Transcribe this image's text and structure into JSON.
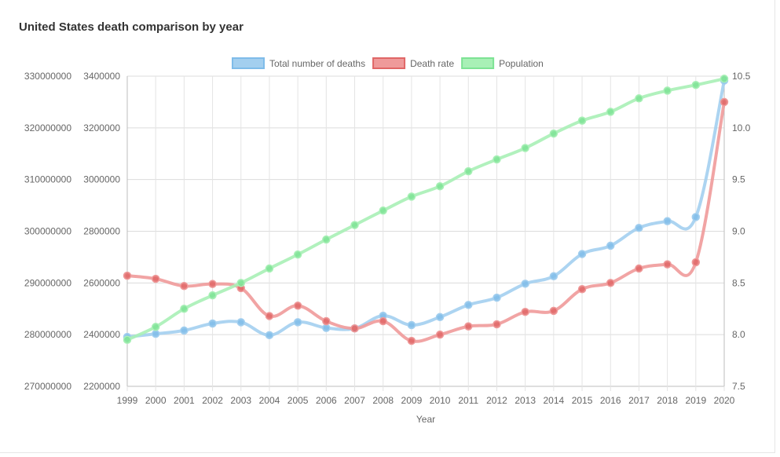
{
  "chart_data": {
    "type": "line",
    "title": "United States death comparison by year",
    "xlabel": "Year",
    "categories": [
      "1999",
      "2000",
      "2001",
      "2002",
      "2003",
      "2004",
      "2005",
      "2006",
      "2007",
      "2008",
      "2009",
      "2010",
      "2011",
      "2012",
      "2013",
      "2014",
      "2015",
      "2016",
      "2017",
      "2018",
      "2019",
      "2020"
    ],
    "axes": {
      "population": {
        "ticks": [
          "270000000",
          "280000000",
          "290000000",
          "300000000",
          "310000000",
          "320000000",
          "330000000"
        ],
        "ylim": [
          270000000,
          330000000
        ]
      },
      "deaths": {
        "ticks": [
          "2200000",
          "2400000",
          "2600000",
          "2800000",
          "3000000",
          "3200000",
          "3400000"
        ],
        "ylim": [
          2200000,
          3400000
        ]
      },
      "rate": {
        "ticks": [
          "7.5",
          "8.0",
          "8.5",
          "9.0",
          "9.5",
          "10.0",
          "10.5"
        ],
        "ylim": [
          7.5,
          10.5
        ]
      }
    },
    "grid": true,
    "legend": "top-center",
    "series": [
      {
        "name": "Total number of deaths",
        "axis": "deaths",
        "color": "#a3cfef",
        "border": "#7fbce9",
        "values": [
          2391000,
          2403000,
          2416000,
          2443000,
          2448000,
          2398000,
          2448000,
          2426000,
          2424000,
          2473000,
          2437000,
          2468000,
          2515000,
          2543000,
          2597000,
          2626000,
          2712000,
          2744000,
          2813000,
          2839000,
          2855000,
          3383000
        ]
      },
      {
        "name": "Death rate",
        "axis": "rate",
        "color": "#ef9a9a",
        "border": "#e06666",
        "values": [
          8.57,
          8.54,
          8.47,
          8.49,
          8.45,
          8.18,
          8.28,
          8.13,
          8.06,
          8.13,
          7.94,
          8.0,
          8.08,
          8.1,
          8.22,
          8.23,
          8.44,
          8.5,
          8.64,
          8.68,
          8.7,
          10.25
        ]
      },
      {
        "name": "Population",
        "axis": "population",
        "color": "#a8f0b6",
        "border": "#7de394",
        "values": [
          279000000,
          281500000,
          285000000,
          287600000,
          290000000,
          292800000,
          295500000,
          298400000,
          301200000,
          304000000,
          306700000,
          308700000,
          311600000,
          313900000,
          316100000,
          318900000,
          321400000,
          323100000,
          325700000,
          327200000,
          328300000,
          329500000
        ]
      }
    ]
  }
}
